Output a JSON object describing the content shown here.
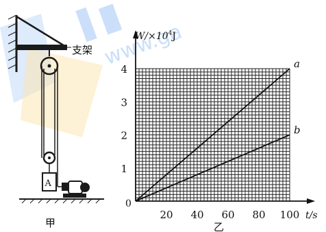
{
  "figure_jia": {
    "caption": "甲",
    "bracket_label": "支架",
    "block_label": "A"
  },
  "figure_yi": {
    "caption": "乙",
    "watermark": "www.ga"
  },
  "chart_data": {
    "type": "line",
    "title": "",
    "xlabel": "t/s",
    "ylabel": "W/×10⁴J",
    "ylabel_base": "W/×10",
    "ylabel_exp": "4",
    "ylabel_unit": "J",
    "xlim": [
      0,
      100
    ],
    "ylim": [
      0,
      4
    ],
    "x_ticks": [
      "20",
      "40",
      "60",
      "80",
      "100"
    ],
    "y_ticks": [
      "1",
      "2",
      "3",
      "4"
    ],
    "origin_label": "0",
    "grid": true,
    "series": [
      {
        "name": "a",
        "x": [
          0,
          100
        ],
        "y": [
          0,
          4
        ]
      },
      {
        "name": "b",
        "x": [
          0,
          100
        ],
        "y": [
          0,
          2
        ]
      }
    ]
  },
  "colors": {
    "ink": "#1a1a1a",
    "watermark_blue": "#2b7de9",
    "watermark_yellow": "#f6c55a"
  }
}
